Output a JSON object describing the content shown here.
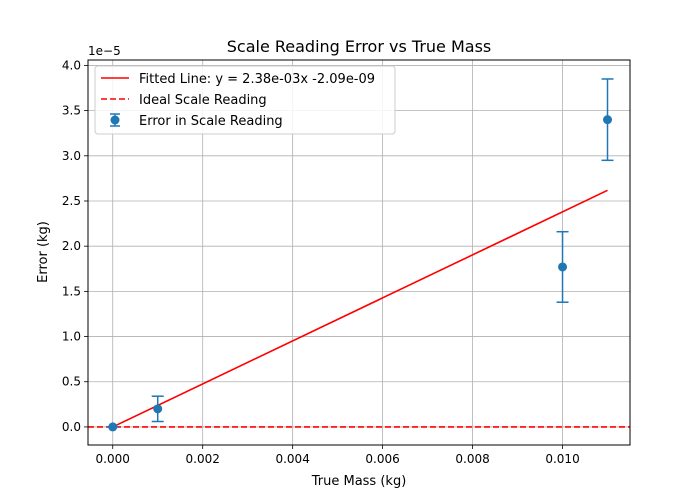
{
  "chart_data": {
    "type": "scatter",
    "title": "Scale Reading Error vs True Mass",
    "xlabel": "True Mass (kg)",
    "ylabel": "Error (kg)",
    "y_offset_label": "1e−5",
    "xlim": [
      -0.00055,
      0.0115
    ],
    "ylim": [
      -2e-06,
      4.06e-05
    ],
    "grid": true,
    "legend_position": "top-left",
    "x_ticks": [
      0.0,
      0.002,
      0.004,
      0.006,
      0.008,
      0.01
    ],
    "x_tick_labels": [
      "0.000",
      "0.002",
      "0.004",
      "0.006",
      "0.008",
      "0.010"
    ],
    "y_ticks": [
      0,
      5e-06,
      1e-05,
      1.5e-05,
      2e-05,
      2.5e-05,
      3e-05,
      3.5e-05,
      4e-05
    ],
    "y_tick_labels": [
      "0.0",
      "0.5",
      "1.0",
      "1.5",
      "2.0",
      "2.5",
      "3.0",
      "3.5",
      "4.0"
    ],
    "series": [
      {
        "name": "Fitted Line: y = 2.38e-03x -2.09e-09",
        "kind": "line",
        "color": "#ff0000",
        "style": "solid",
        "slope": 0.00238,
        "intercept": -2.09e-09,
        "x_range": [
          0.0,
          0.011
        ]
      },
      {
        "name": "Ideal Scale Reading",
        "kind": "hline",
        "color": "#ff0000",
        "style": "dashed",
        "y": 0.0
      },
      {
        "name": "Error in Scale Reading",
        "kind": "errorbar",
        "color": "#1f77b4",
        "x": [
          0.0,
          0.001,
          0.01,
          0.011
        ],
        "y": [
          0.0,
          2e-06,
          1.77e-05,
          3.4e-05
        ],
        "yerr": [
          0.0,
          1.4e-06,
          3.9e-06,
          4.5e-06
        ]
      }
    ]
  }
}
